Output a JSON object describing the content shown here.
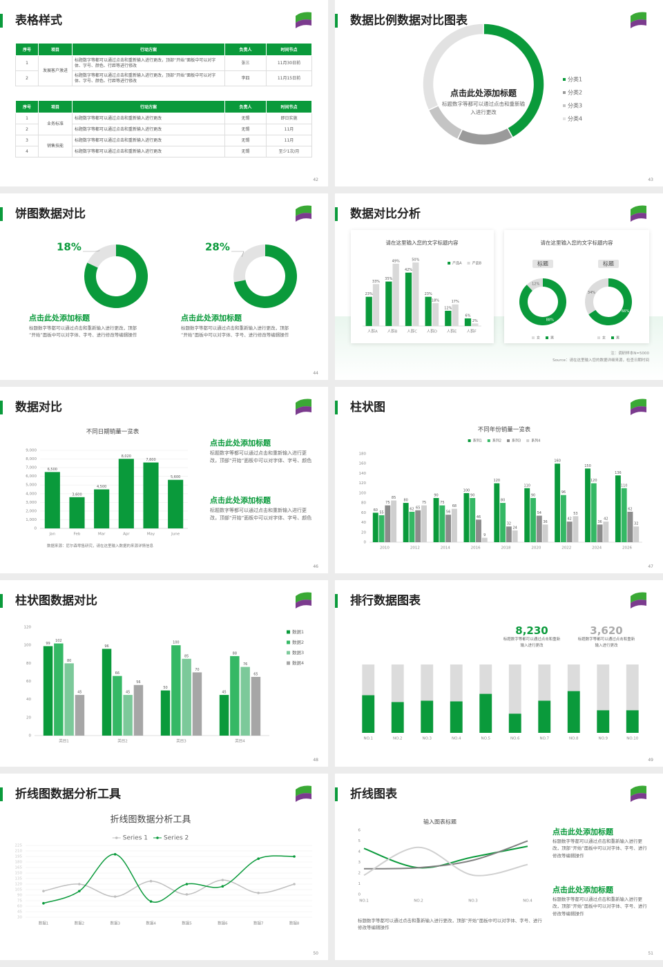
{
  "slides": [
    {
      "title": "表格样式",
      "page": 42,
      "tables": [
        {
          "headers": [
            "序号",
            "项目",
            "行动方案",
            "负责人",
            "时间节点"
          ],
          "groups": [
            {
              "item": "发展客户激进",
              "rows": [
                [
                  "1",
                  "标题数字等都可以通过点击和重新输入进行更改，顶部“开始”面板中可以对字体、字号、颜色、行距等进行修改",
                  "张三",
                  "11月30日前"
                ],
                [
                  "2",
                  "标题数字等都可以通过点击和重新输入进行更改，顶部“开始”面板中可以对字体、字号、颜色、行距等进行修改",
                  "李四",
                  "11月15日前"
                ]
              ]
            }
          ]
        },
        {
          "headers": [
            "序号",
            "项目",
            "行动方案",
            "负责人",
            "时间节点"
          ],
          "groups": [
            {
              "item": "业务标准",
              "rows": [
                [
                  "1",
                  "标题数字等都可以通过点击和重新输入进行更改",
                  "无锡",
                  "即日实施"
                ],
                [
                  "2",
                  "标题数字等都可以通过点击和重新输入进行更改",
                  "无锡",
                  "11月"
                ]
              ]
            },
            {
              "item": "销售技能",
              "rows": [
                [
                  "3",
                  "标题数字等都可以通过点击和重新输入进行更改",
                  "无锡",
                  "11月"
                ],
                [
                  "4",
                  "标题数字等都可以通过点击和重新输入进行更改",
                  "无锡",
                  "至少1次/月"
                ]
              ]
            }
          ]
        }
      ]
    },
    {
      "title": "数据比例数据对比图表",
      "page": 43,
      "heading": "点击此处添加标题",
      "text": "标题数字等都可以通过点击和重新输入进行更改"
    },
    {
      "title": "饼图数据对比",
      "page": 44,
      "blocks": [
        {
          "heading": "点击此处添加标题",
          "text": "标题数字等都可以通过点击和重新输入进行更改，顶部“开始”面板中可以对字体、字号、进行修改等编辑操作"
        },
        {
          "heading": "点击此处添加标题",
          "text": "标题数字等都可以通过点击和重新输入进行更改，顶部“开始”面板中可以对字体、字号、进行修改等编辑操作"
        }
      ]
    },
    {
      "title": "数据对比分析",
      "page": 45,
      "card_title": "请在这里输入您的文字标题内容",
      "notes": [
        "注：调研样本N=5000",
        "Source：请在这里输入您的数据详细来源，检查日期时间"
      ]
    },
    {
      "title": "数据对比",
      "page": 46,
      "source": "数据来源：尼尔森零售研究，请在这里输入数据的来源详情信息",
      "blocks": [
        {
          "heading": "点击此处添加标题",
          "text": "标题数字等都可以通过点击和重新输入进行更改，顶部“开始”面板中可以对字体、字号、颜色"
        },
        {
          "heading": "点击此处添加标题",
          "text": "标题数字等都可以通过点击和重新输入进行更改，顶部“开始”面板中可以对字体、字号、颜色"
        }
      ]
    },
    {
      "title": "柱状图",
      "page": 47
    },
    {
      "title": "柱状图数据对比",
      "page": 48
    },
    {
      "title": "排行数据图表",
      "page": 49,
      "kpis": [
        {
          "value": "8,230",
          "text": "标题数字等都可以通过点击和重新输入进行更改"
        },
        {
          "value": "3,620",
          "text": "标题数字等都可以通过点击和重新输入进行更改"
        }
      ]
    },
    {
      "title": "折线图数据分析工具",
      "page": 50
    },
    {
      "title": "折线图表",
      "page": 51,
      "blocks": [
        {
          "heading": "点击此处添加标题",
          "text": "标题数字等都可以通过点击和重新输入进行更改，顶部“开始”面板中可以对字体、字号、进行修改等编辑操作"
        },
        {
          "heading": "点击此处添加标题",
          "text": "标题数字等都可以通过点击和重新输入进行更改，顶部“开始”面板中可以对字体、字号、进行修改等编辑操作"
        }
      ],
      "text": "标题数字等都可以通过点击和重新输入进行更改，顶部“开始”面板中可以对字体、字号、进行修改等编辑操作"
    }
  ],
  "chart_data": [
    {
      "type": "donut",
      "categories": [
        "分类1",
        "分类2",
        "分类3",
        "分类4"
      ],
      "values": [
        42,
        15,
        11,
        32
      ],
      "colors": [
        "#0a9a3b",
        "#9a9a9a",
        "#c4c4c4",
        "#e2e2e2"
      ],
      "legend": "right"
    },
    {
      "type": "donut",
      "values": [
        18,
        82
      ],
      "value_labels": [
        "18%",
        null
      ],
      "colors": [
        "#e3e3e3",
        "#0a9a3b"
      ]
    },
    {
      "type": "donut",
      "values": [
        28,
        72
      ],
      "value_labels": [
        "28%",
        null
      ],
      "colors": [
        "#e3e3e3",
        "#0a9a3b"
      ]
    },
    {
      "type": "bar",
      "title": "请在这里输入您的文字标题内容",
      "categories": [
        "人群A",
        "人群B",
        "人群C",
        "人群D",
        "人群E",
        "人群F"
      ],
      "legend": "top-right",
      "series": [
        {
          "name": "产品A",
          "color": "#0a9a3b",
          "values": [
            23,
            35,
            42,
            23,
            12,
            6
          ],
          "value_labels": [
            "23%",
            "35%",
            "42%",
            "23%",
            "12%",
            "6%"
          ]
        },
        {
          "name": "产品B",
          "color": "#d9d9d9",
          "values": [
            33,
            49,
            50,
            18,
            17,
            2
          ],
          "value_labels": [
            "33%",
            "49%",
            "50%",
            "18%",
            "17%",
            "2%"
          ]
        }
      ]
    },
    {
      "type": "donut",
      "title": "标题",
      "categories": [
        "女",
        "男"
      ],
      "values": [
        12,
        88
      ],
      "value_labels": [
        "12%",
        "88%"
      ],
      "colors": [
        "#dcdcdc",
        "#0a9a3b"
      ],
      "legend": "bottom"
    },
    {
      "type": "donut",
      "title": "标题",
      "categories": [
        "女",
        "男"
      ],
      "values": [
        34,
        66
      ],
      "value_labels": [
        "34%",
        "66%"
      ],
      "colors": [
        "#dcdcdc",
        "#0a9a3b"
      ],
      "legend": "bottom"
    },
    {
      "type": "bar",
      "title": "不同日期销量一览表",
      "categories": [
        "Jan",
        "Feb",
        "Mar",
        "Apr",
        "May",
        "June"
      ],
      "values": [
        6500,
        3600,
        4500,
        8020,
        7600,
        5600
      ],
      "value_labels": [
        "6,500",
        "3,600",
        "4,500",
        "8,020",
        "7,600",
        "5,600"
      ],
      "color": "#0a9a3b",
      "ylim": [
        0,
        9000
      ],
      "yticks": [
        0,
        {
          "value": 1000,
          "label": "1,000"
        },
        {
          "value": 2000,
          "label": "2,000"
        },
        {
          "value": 3000,
          "label": "3,000"
        },
        {
          "value": 4000,
          "label": "4,000"
        },
        {
          "value": 5000,
          "label": "5,000"
        },
        {
          "value": 6000,
          "label": "6,000"
        },
        {
          "value": 7000,
          "label": "7,000"
        },
        {
          "value": 8000,
          "label": "8,000"
        },
        {
          "value": 9000,
          "label": "9,000"
        }
      ],
      "grid": true
    },
    {
      "type": "bar",
      "title": "不同年份销量一览表",
      "categories": [
        "2010",
        "2012",
        "2014",
        "2016",
        "2018",
        "2020",
        "2022",
        "2024",
        "2026"
      ],
      "legend": "top",
      "series": [
        {
          "name": "系列1",
          "color": "#0a9a3b",
          "values": [
            60,
            80,
            90,
            100,
            120,
            110,
            160,
            150,
            136
          ]
        },
        {
          "name": "系列2",
          "color": "#35b865",
          "values": [
            55,
            62,
            75,
            90,
            80,
            90,
            96,
            120,
            110
          ]
        },
        {
          "name": "系列3",
          "color": "#8c8c8c",
          "values": [
            75,
            65,
            56,
            46,
            32,
            54,
            42,
            36,
            62
          ]
        },
        {
          "name": "系列4",
          "color": "#cfcfcf",
          "values": [
            85,
            75,
            68,
            9,
            24,
            36,
            53,
            42,
            32
          ]
        }
      ],
      "ylim": [
        0,
        180
      ],
      "yticks": [
        0,
        20,
        40,
        60,
        80,
        100,
        120,
        140,
        160,
        180
      ],
      "grid": false
    },
    {
      "type": "bar",
      "categories": [
        "类目1",
        "类目2",
        "类目3",
        "类目4"
      ],
      "legend": "right",
      "series": [
        {
          "name": "数据1",
          "color": "#0a9a3b",
          "values": [
            99,
            96,
            50,
            45
          ]
        },
        {
          "name": "数据2",
          "color": "#35b865",
          "values": [
            102,
            66,
            100,
            88
          ]
        },
        {
          "name": "数据3",
          "color": "#7cc99a",
          "values": [
            80,
            45,
            85,
            76
          ]
        },
        {
          "name": "数据4",
          "color": "#a6a6a6",
          "values": [
            45,
            56,
            70,
            65
          ]
        }
      ],
      "ylim": [
        0,
        120
      ],
      "yticks": [
        0,
        20,
        40,
        60,
        80,
        100,
        120
      ],
      "grid": false
    },
    {
      "type": "bar",
      "categories": [
        "NO.1",
        "NO.2",
        "NO.3",
        "NO.4",
        "NO.5",
        "NO.6",
        "NO.7",
        "NO.8",
        "NO.9",
        "NO.10"
      ],
      "values": [
        55,
        45,
        47,
        46,
        57,
        28,
        47,
        61,
        33,
        33
      ],
      "color": "#0a9a3b",
      "track_color": "#dcdcdc",
      "ylim": [
        0,
        100
      ]
    },
    {
      "type": "line",
      "title": "折线图数据分析工具",
      "categories": [
        "数据1",
        "数据2",
        "数据3",
        "数据4",
        "数据5",
        "数据6",
        "数据7",
        "数据8"
      ],
      "legend": "top",
      "smooth": true,
      "series": [
        {
          "name": "Series 1",
          "color": "#bfbfbf",
          "values": [
            101,
            120,
            86,
            128,
            92,
            131,
            96,
            120
          ]
        },
        {
          "name": "Series 2",
          "color": "#0a9a3b",
          "values": [
            68,
            101,
            201,
            73,
            120,
            114,
            189,
            195
          ]
        }
      ],
      "ylim": [
        30,
        225
      ],
      "yticks": [
        30,
        45,
        60,
        75,
        90,
        105,
        120,
        135,
        150,
        165,
        180,
        195,
        210,
        225
      ],
      "grid": true
    },
    {
      "type": "line",
      "title": "输入图表标题",
      "categories": [
        "NO.1",
        "NO.2",
        "NO.3",
        "NO.4"
      ],
      "smooth": true,
      "series": [
        {
          "color": "#0a9a3b",
          "values": [
            4.3,
            2.5,
            3.5,
            4.5
          ]
        },
        {
          "color": "#808080",
          "values": [
            2.4,
            2.5,
            3.2,
            5.0
          ]
        },
        {
          "color": "#d0d0d0",
          "values": [
            1.8,
            4.4,
            1.8,
            2.8
          ]
        }
      ],
      "ylim": [
        0,
        6
      ],
      "yticks": [
        0,
        1,
        2,
        3,
        4,
        5,
        6
      ],
      "grid": false
    }
  ]
}
